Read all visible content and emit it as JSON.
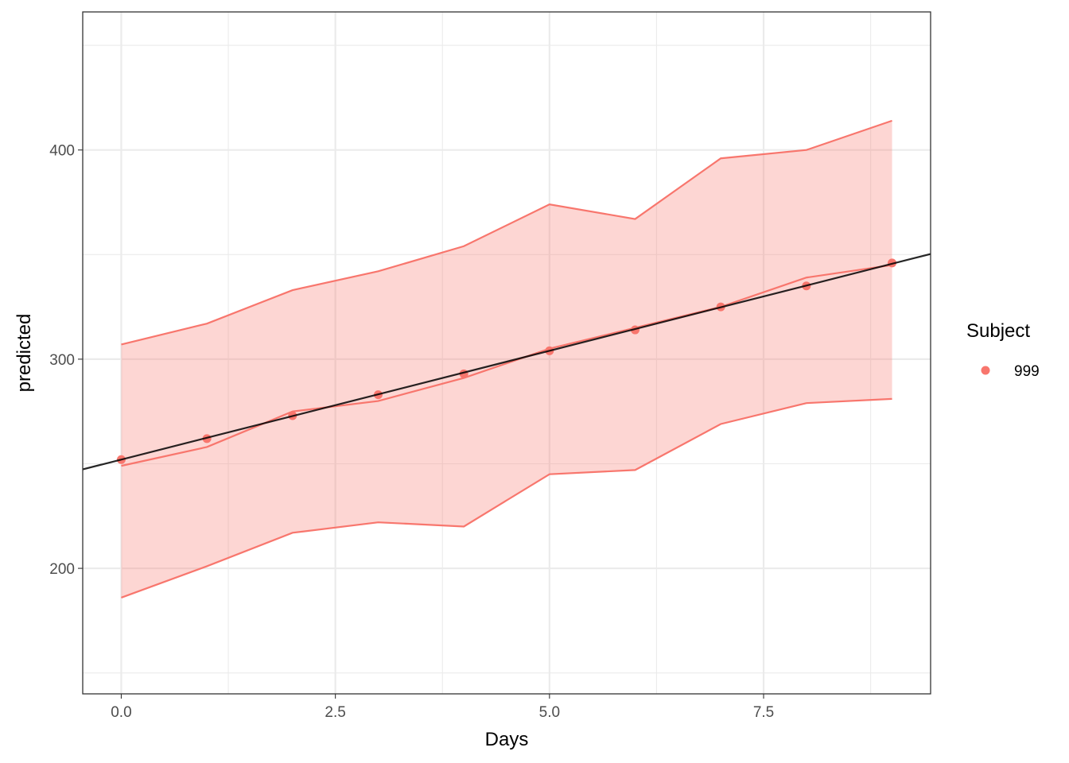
{
  "chart_data": {
    "type": "line",
    "title": "",
    "xlabel": "Days",
    "ylabel": "predicted",
    "xlim": [
      -0.45,
      9.45
    ],
    "ylim": [
      140,
      466
    ],
    "x_ticks": [
      0.0,
      2.5,
      5.0,
      7.5
    ],
    "x_tick_labels": [
      "0.0",
      "2.5",
      "5.0",
      "7.5"
    ],
    "y_ticks": [
      200,
      300,
      400
    ],
    "y_tick_labels": [
      "200",
      "300",
      "400"
    ],
    "grid": true,
    "legend": {
      "title": "Subject",
      "position": "right",
      "entries": [
        {
          "label": "999",
          "color": "#F8766D"
        }
      ]
    },
    "series": [
      {
        "name": "999",
        "color": "#F8766D",
        "x": [
          0,
          1,
          2,
          3,
          4,
          5,
          6,
          7,
          8,
          9
        ],
        "points": [
          252,
          262,
          273,
          283,
          293,
          304,
          314,
          325,
          335,
          346
        ],
        "predicted": [
          249,
          258,
          275,
          280,
          291,
          305,
          315,
          325,
          339,
          345
        ],
        "ribbon_lower": [
          186,
          201,
          217,
          222,
          220,
          245,
          247,
          269,
          279,
          281
        ],
        "ribbon_upper": [
          307,
          317,
          333,
          342,
          354,
          374,
          367,
          396,
          400,
          414
        ]
      }
    ],
    "trend_line": {
      "color": "#000000",
      "intercept": 252,
      "slope": 10.4
    }
  }
}
